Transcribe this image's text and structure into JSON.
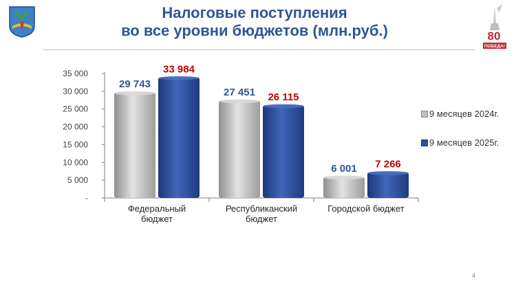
{
  "slide": {
    "title_line1": "Налоговые поступления",
    "title_line2": "во все  уровни бюджетов (млн.руб.)",
    "page_number": "4",
    "logo_text": "80",
    "logo_subtext": "ПОБЕДА!"
  },
  "chart_data": {
    "type": "bar",
    "categories": [
      "Федеральный бюджет",
      "Республиканский бюджет",
      "Городской бюджет"
    ],
    "category_lines": [
      [
        "Федеральный",
        "бюджет"
      ],
      [
        "Республиканский",
        "бюджет"
      ],
      [
        "Городской бюджет"
      ]
    ],
    "series": [
      {
        "name": "9 месяцев 2024г.",
        "values": [
          29743,
          27451,
          6001
        ],
        "labels": [
          "29 743",
          "27 451",
          "6 001"
        ],
        "color": "#bfbfbf",
        "label_color": "#2f5597"
      },
      {
        "name": "9 месяцев 2025г.",
        "values": [
          33984,
          26115,
          7266
        ],
        "labels": [
          "33 984",
          "26 115",
          "7 266"
        ],
        "color": "#2e4f9a",
        "label_color": "#c00000"
      }
    ],
    "y_ticks": [
      "35 000",
      "30 000",
      "25 000",
      "20 000",
      "15 000",
      "10 000",
      "5 000",
      "-"
    ],
    "y_tick_values": [
      35000,
      30000,
      25000,
      20000,
      15000,
      10000,
      5000,
      0
    ],
    "ylim": [
      0,
      35000
    ],
    "legend_position": "right",
    "grid": false
  }
}
